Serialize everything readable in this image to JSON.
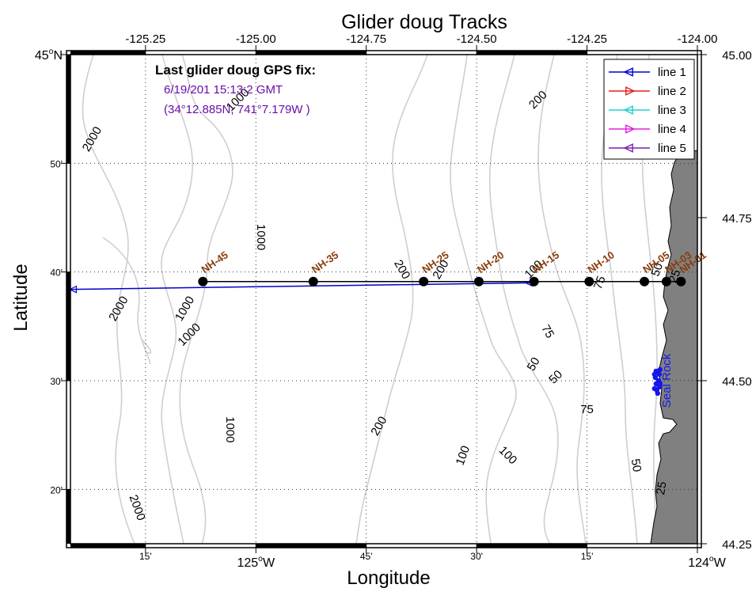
{
  "title": "Glider doug Tracks",
  "xlabel": "Longitude",
  "ylabel": "Latitude",
  "gps_fix": {
    "heading": "Last glider doug GPS fix:",
    "time": "6/19/201 15:13:2 GMT",
    "position": "(34°12.885N, 741°7.179W )"
  },
  "axis_ticks": {
    "top": [
      {
        "lon": -125.25,
        "label": "-125.25"
      },
      {
        "lon": -125.0,
        "label": "-125.00"
      },
      {
        "lon": -124.75,
        "label": "-124.75"
      },
      {
        "lon": -124.5,
        "label": "-124.50"
      },
      {
        "lon": -124.25,
        "label": "-124.25"
      },
      {
        "lon": -124.0,
        "label": "-124.00"
      }
    ],
    "bottom": [
      {
        "lon": -125.25,
        "label": "15'"
      },
      {
        "lon": -125.0,
        "label": "125°W"
      },
      {
        "lon": -124.75,
        "label": "45'"
      },
      {
        "lon": -124.5,
        "label": "30'"
      },
      {
        "lon": -124.25,
        "label": "15'"
      },
      {
        "lon": -124.0,
        "label": "124°W"
      }
    ],
    "left": [
      {
        "lat": 45.0,
        "label": "45°N"
      },
      {
        "lat": 44.8333,
        "label": "50'"
      },
      {
        "lat": 44.6667,
        "label": "40'"
      },
      {
        "lat": 44.5,
        "label": "30'"
      },
      {
        "lat": 44.3333,
        "label": "20'"
      }
    ],
    "right": [
      {
        "lat": 45.0,
        "label": "45.00"
      },
      {
        "lat": 44.75,
        "label": "44.75"
      },
      {
        "lat": 44.5,
        "label": "44.50"
      },
      {
        "lat": 44.25,
        "label": "44.25"
      }
    ]
  },
  "legend": {
    "position": "top-right",
    "entries": [
      {
        "label": "line 1",
        "color": "#0000cc",
        "marker": "left"
      },
      {
        "label": "line 2",
        "color": "#e02020",
        "marker": "right"
      },
      {
        "label": "line 3",
        "color": "#20d0d0",
        "marker": "left"
      },
      {
        "label": "line 4",
        "color": "#e020e0",
        "marker": "right"
      },
      {
        "label": "line 5",
        "color": "#7a20b0",
        "marker": "left"
      }
    ]
  },
  "chart_data": {
    "type": "map",
    "xlim": [
      -125.42,
      -124.0
    ],
    "ylim": [
      44.25,
      45.0
    ],
    "stations": [
      {
        "name": "NH-45",
        "lon": -125.12,
        "lat": 44.652
      },
      {
        "name": "NH-35",
        "lon": -124.87,
        "lat": 44.652
      },
      {
        "name": "NH-25",
        "lon": -124.62,
        "lat": 44.652
      },
      {
        "name": "NH-20",
        "lon": -124.495,
        "lat": 44.652
      },
      {
        "name": "NH-15",
        "lon": -124.37,
        "lat": 44.652
      },
      {
        "name": "NH-10",
        "lon": -124.245,
        "lat": 44.652
      },
      {
        "name": "NH-05",
        "lon": -124.12,
        "lat": 44.652
      },
      {
        "name": "NH-03",
        "lon": -124.07,
        "lat": 44.652
      },
      {
        "name": "NH-01",
        "lon": -124.037,
        "lat": 44.652
      }
    ],
    "glider_track": {
      "series": "line 1",
      "points": [
        [
          -125.42,
          44.64
        ],
        [
          -124.38,
          44.65
        ]
      ]
    },
    "place_label": {
      "name": "Seal Rock",
      "lon": -124.09,
      "lat": 44.5
    },
    "contour_labels": [
      {
        "text": "200",
        "lon": -124.36,
        "lat": 44.93,
        "rot": -45
      },
      {
        "text": "1000",
        "lon": -125.04,
        "lat": 44.93,
        "rot": -45
      },
      {
        "text": "2000",
        "lon": -125.37,
        "lat": 44.87,
        "rot": -60
      },
      {
        "text": "1000",
        "lon": -124.99,
        "lat": 44.72,
        "rot": 90
      },
      {
        "text": "200",
        "lon": -124.67,
        "lat": 44.67,
        "rot": 60
      },
      {
        "text": "200",
        "lon": -124.58,
        "lat": 44.67,
        "rot": -60
      },
      {
        "text": "100",
        "lon": -124.37,
        "lat": 44.67,
        "rot": -45
      },
      {
        "text": "75",
        "lon": -124.22,
        "lat": 44.65,
        "rot": -70
      },
      {
        "text": "50",
        "lon": -124.09,
        "lat": 44.67,
        "rot": -70
      },
      {
        "text": "25",
        "lon": -124.05,
        "lat": 44.66,
        "rot": -70
      },
      {
        "text": "2000",
        "lon": -125.31,
        "lat": 44.61,
        "rot": -60
      },
      {
        "text": "1000",
        "lon": -125.16,
        "lat": 44.61,
        "rot": -60
      },
      {
        "text": "1000",
        "lon": -125.15,
        "lat": 44.57,
        "rot": -45
      },
      {
        "text": "75",
        "lon": -124.34,
        "lat": 44.575,
        "rot": 60
      },
      {
        "text": "50",
        "lon": -124.37,
        "lat": 44.525,
        "rot": -60
      },
      {
        "text": "50",
        "lon": -124.32,
        "lat": 44.505,
        "rot": -45
      },
      {
        "text": "75",
        "lon": -124.25,
        "lat": 44.455,
        "rot": 0
      },
      {
        "text": "1000",
        "lon": -125.06,
        "lat": 44.425,
        "rot": 90
      },
      {
        "text": "200",
        "lon": -124.72,
        "lat": 44.43,
        "rot": -60
      },
      {
        "text": "100",
        "lon": -124.53,
        "lat": 44.385,
        "rot": -70
      },
      {
        "text": "100",
        "lon": -124.43,
        "lat": 44.385,
        "rot": 45
      },
      {
        "text": "50",
        "lon": -124.14,
        "lat": 44.37,
        "rot": 80
      },
      {
        "text": "25",
        "lon": -124.08,
        "lat": 44.335,
        "rot": -80
      },
      {
        "text": "2000",
        "lon": -125.27,
        "lat": 44.305,
        "rot": 70
      }
    ],
    "grid": true
  },
  "colors": {
    "land": "#808080",
    "contour": "#cfcfcf",
    "track": "#0000cc",
    "station_label": "#8b3a0a",
    "place_label": "#1515ee",
    "gps_text": "#6a0da8"
  }
}
